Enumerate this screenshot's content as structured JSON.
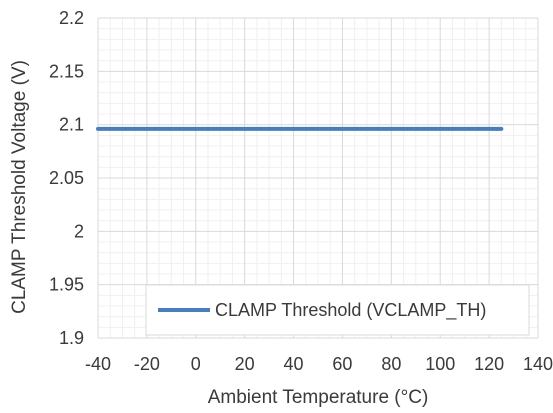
{
  "chart_data": {
    "type": "line",
    "title": "",
    "xlabel": "Ambient Temperature (°C)",
    "ylabel": "CLAMP Threshold Voltage (V)",
    "xlim": [
      -40,
      140
    ],
    "ylim": [
      1.9,
      2.2
    ],
    "xticks": [
      -40,
      -20,
      0,
      20,
      40,
      60,
      80,
      100,
      120,
      140
    ],
    "xtick_labels": [
      "-40",
      "-20",
      "0",
      "20",
      "40",
      "60",
      "80",
      "100",
      "120",
      "140"
    ],
    "yticks": [
      1.9,
      1.95,
      2.0,
      2.05,
      2.1,
      2.15,
      2.2
    ],
    "ytick_labels": [
      "1.9",
      "1.95",
      "2",
      "2.05",
      "2.1",
      "2.15",
      "2.2"
    ],
    "grid": true,
    "legend_position": "bottom-right",
    "series": [
      {
        "name": "CLAMP Threshold (VCLAMP_TH)",
        "color": "#4a7ebb",
        "x": [
          -40,
          125
        ],
        "y": [
          2.096,
          2.096
        ]
      }
    ]
  }
}
